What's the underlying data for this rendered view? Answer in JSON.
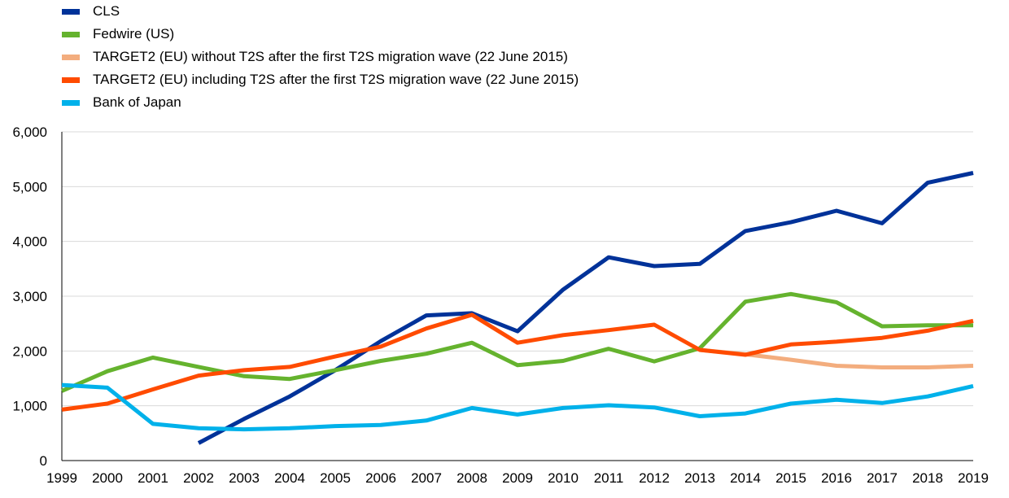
{
  "chart_data": {
    "type": "line",
    "x": [
      "1999",
      "2000",
      "2001",
      "2002",
      "2003",
      "2004",
      "2005",
      "2006",
      "2007",
      "2008",
      "2009",
      "2010",
      "2011",
      "2012",
      "2013",
      "2014",
      "2015",
      "2016",
      "2017",
      "2018",
      "2019"
    ],
    "ylim": [
      0,
      6000
    ],
    "yticks": [
      0,
      1000,
      2000,
      3000,
      4000,
      5000,
      6000
    ],
    "ytick_labels": [
      "0",
      "1,000",
      "2,000",
      "3,000",
      "4,000",
      "5,000",
      "6,000"
    ],
    "grid": "horizontal",
    "legend": "top-left",
    "title": "",
    "xlabel": "",
    "ylabel": "",
    "series": [
      {
        "name": "CLS",
        "color": "#003299",
        "values": [
          null,
          null,
          null,
          320,
          760,
          1170,
          1650,
          2180,
          2650,
          2690,
          2360,
          3120,
          3710,
          3550,
          3590,
          4190,
          4350,
          4560,
          4330,
          5070,
          5250
        ]
      },
      {
        "name": "Fedwire (US)",
        "color": "#65b32e",
        "values": [
          1270,
          1630,
          1880,
          1710,
          1540,
          1490,
          1650,
          1820,
          1950,
          2150,
          1740,
          1820,
          2040,
          1810,
          2050,
          2900,
          3040,
          2890,
          2450,
          2470,
          2470
        ]
      },
      {
        "name": "TARGET2 (EU) without T2S after the first T2S migration wave (22 June 2015)",
        "color": "#f3ad7e",
        "values": [
          null,
          null,
          null,
          null,
          null,
          null,
          null,
          null,
          null,
          null,
          null,
          null,
          null,
          null,
          2020,
          1940,
          1840,
          1730,
          1700,
          1700,
          1730
        ]
      },
      {
        "name": "TARGET2 (EU) including T2S after the first T2S migration wave (22 June 2015)",
        "color": "#ff4b00",
        "values": [
          930,
          1040,
          1300,
          1550,
          1650,
          1710,
          1900,
          2080,
          2410,
          2660,
          2150,
          2290,
          2380,
          2480,
          2020,
          1930,
          2120,
          2170,
          2240,
          2370,
          2550
        ]
      },
      {
        "name": "Bank of Japan",
        "color": "#00b1ea",
        "values": [
          1380,
          1330,
          670,
          590,
          570,
          590,
          630,
          650,
          730,
          960,
          840,
          960,
          1010,
          970,
          810,
          860,
          1040,
          1110,
          1050,
          1170,
          1360
        ]
      }
    ]
  }
}
